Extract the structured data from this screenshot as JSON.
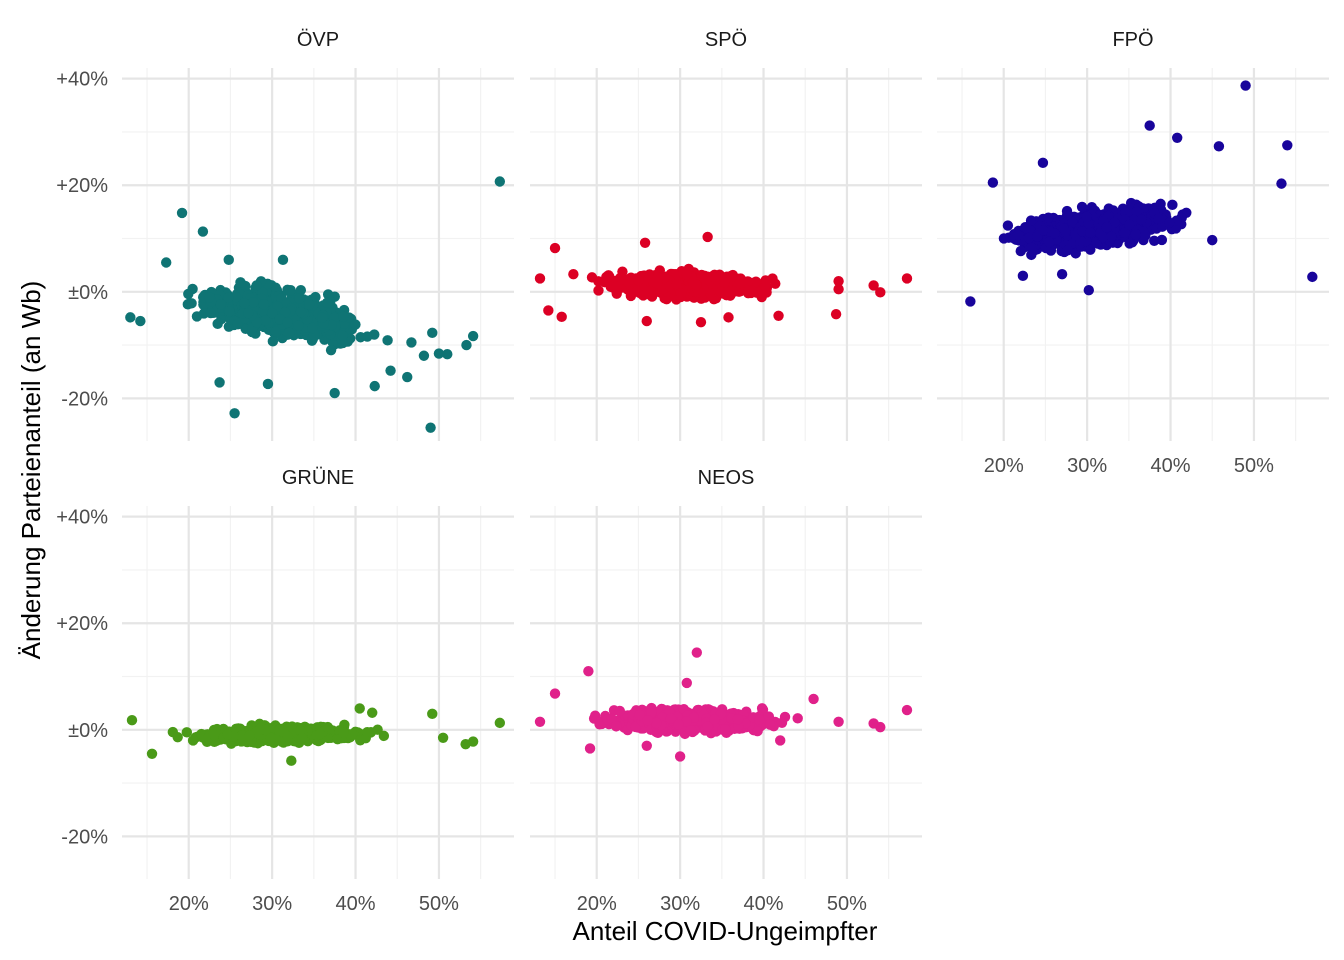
{
  "chart_data": {
    "type": "scatter",
    "xlabel": "Anteil COVID-Ungeimpfter",
    "ylabel": "Änderung Parteienanteil (an Wb)",
    "xlim": [
      12,
      59
    ],
    "ylim": [
      -28,
      42
    ],
    "x_ticks": [
      20,
      30,
      40,
      50
    ],
    "x_tick_labels": [
      "20%",
      "30%",
      "40%",
      "50%"
    ],
    "y_ticks": [
      -20,
      0,
      20,
      40
    ],
    "y_tick_labels": [
      "-20%",
      "±0%",
      "+20%",
      "+40%"
    ],
    "grid": true,
    "legend": "none",
    "panels": [
      {
        "name": "ÖVP",
        "color": "#0f7474",
        "center": {
          "mean": -4,
          "slope": -0.2,
          "spread": 3.2,
          "n": 900
        },
        "points": [
          [
            57.3,
            20.7
          ],
          [
            19.2,
            14.8
          ],
          [
            21.7,
            11.3
          ],
          [
            25.5,
            -22.8
          ],
          [
            49.0,
            -25.5
          ],
          [
            37.5,
            -19.0
          ],
          [
            29.5,
            -17.3
          ],
          [
            42.3,
            -17.7
          ],
          [
            23.7,
            -17.0
          ],
          [
            44.2,
            -14.8
          ],
          [
            46.2,
            -16.0
          ],
          [
            53.3,
            -10.0
          ],
          [
            54.1,
            -8.3
          ],
          [
            51.0,
            -11.7
          ],
          [
            50.0,
            -11.6
          ],
          [
            49.2,
            -7.7
          ],
          [
            48.2,
            -12.0
          ],
          [
            46.7,
            -9.5
          ],
          [
            13.0,
            -4.8
          ],
          [
            14.2,
            -5.5
          ],
          [
            17.3,
            5.5
          ],
          [
            24.8,
            6.0
          ],
          [
            31.3,
            6.0
          ]
        ]
      },
      {
        "name": "SPÖ",
        "color": "#dc0024",
        "center": {
          "mean": 1.2,
          "slope": -0.02,
          "spread": 1.7,
          "n": 900
        },
        "points": [
          [
            57.2,
            2.5
          ],
          [
            54.0,
            -0.1
          ],
          [
            53.2,
            1.2
          ],
          [
            49.0,
            2.0
          ],
          [
            48.7,
            -4.2
          ],
          [
            49.0,
            0.5
          ],
          [
            41.8,
            -4.5
          ],
          [
            33.3,
            10.3
          ],
          [
            25.8,
            9.2
          ],
          [
            15.0,
            8.2
          ],
          [
            13.2,
            2.5
          ],
          [
            14.2,
            -3.5
          ],
          [
            15.8,
            -4.7
          ],
          [
            17.2,
            3.3
          ],
          [
            35.8,
            -4.8
          ],
          [
            26.0,
            -5.5
          ],
          [
            32.5,
            -5.7
          ]
        ]
      },
      {
        "name": "FPÖ",
        "color": "#18049b",
        "center": {
          "mean": 12,
          "slope": 0.2,
          "spread": 2.8,
          "n": 900
        },
        "points": [
          [
            49.0,
            38.7
          ],
          [
            37.5,
            31.2
          ],
          [
            40.8,
            28.9
          ],
          [
            45.8,
            27.3
          ],
          [
            54.0,
            27.5
          ],
          [
            53.3,
            20.3
          ],
          [
            57.0,
            2.8
          ],
          [
            45.0,
            9.7
          ],
          [
            30.2,
            0.3
          ],
          [
            16.0,
            -1.8
          ],
          [
            22.3,
            3.0
          ],
          [
            27.0,
            3.3
          ],
          [
            24.7,
            24.2
          ],
          [
            18.7,
            20.5
          ]
        ]
      },
      {
        "name": "GRÜNE",
        "color": "#4a9a18",
        "center": {
          "mean": -0.8,
          "slope": 0.02,
          "spread": 1.1,
          "n": 900
        },
        "points": [
          [
            57.3,
            1.3
          ],
          [
            54.1,
            -2.2
          ],
          [
            53.2,
            -2.7
          ],
          [
            49.2,
            3.0
          ],
          [
            50.5,
            -1.5
          ],
          [
            40.5,
            4.0
          ],
          [
            32.3,
            -5.8
          ],
          [
            15.6,
            -4.5
          ],
          [
            13.2,
            1.8
          ],
          [
            42.0,
            3.2
          ]
        ]
      },
      {
        "name": "NEOS",
        "color": "#e0218a",
        "center": {
          "mean": 1.8,
          "slope": -0.01,
          "spread": 1.6,
          "n": 900
        },
        "points": [
          [
            57.2,
            3.7
          ],
          [
            54.0,
            0.5
          ],
          [
            53.2,
            1.2
          ],
          [
            49.0,
            1.5
          ],
          [
            46.0,
            5.8
          ],
          [
            42.0,
            -2.0
          ],
          [
            32.0,
            14.5
          ],
          [
            30.8,
            8.8
          ],
          [
            19.0,
            11.0
          ],
          [
            15.0,
            6.8
          ],
          [
            19.2,
            -3.5
          ],
          [
            30.0,
            -5.0
          ],
          [
            26.0,
            -3.0
          ],
          [
            13.2,
            1.5
          ]
        ]
      }
    ]
  }
}
